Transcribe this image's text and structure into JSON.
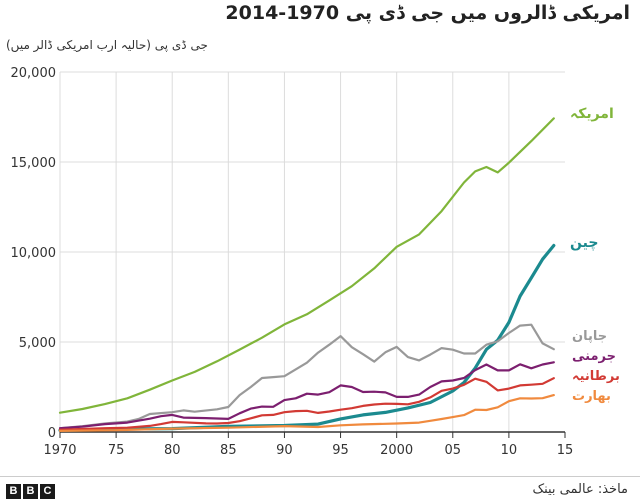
{
  "header": {
    "title": "امریکی ڈالروں میں جی ڈی پی 1970-2014",
    "subtitle": "جی ڈی پی (حالیہ ارب امریکی ڈالر میں)"
  },
  "footer": {
    "logo": [
      "B",
      "B",
      "C"
    ],
    "source": "ماخذ: عالمی بینک"
  },
  "chart_data": {
    "type": "line",
    "title": "امریکی ڈالروں میں جی ڈی پی 1970-2014",
    "ylabel": "جی ڈی پی (حالیہ ارب امریکی ڈالر میں)",
    "xlabel": "",
    "xlim": [
      1970,
      2015
    ],
    "ylim": [
      0,
      20000
    ],
    "x_ticks": [
      1970,
      1975,
      1980,
      1985,
      1990,
      1995,
      2000,
      2005,
      2010,
      2015
    ],
    "x_tick_labels": [
      "1970",
      "75",
      "80",
      "85",
      "90",
      "95",
      "2000",
      "05",
      "10",
      "15"
    ],
    "y_ticks": [
      0,
      5000,
      10000,
      15000,
      20000
    ],
    "y_tick_labels": [
      "0",
      "5,000",
      "10,000",
      "15,000",
      "20,000"
    ],
    "grid": true,
    "series": [
      {
        "name": "امریکہ",
        "color": "#80b53a",
        "width": 2.2,
        "points": [
          [
            1970,
            1070
          ],
          [
            1972,
            1280
          ],
          [
            1974,
            1550
          ],
          [
            1976,
            1870
          ],
          [
            1978,
            2350
          ],
          [
            1980,
            2860
          ],
          [
            1982,
            3340
          ],
          [
            1984,
            3930
          ],
          [
            1986,
            4580
          ],
          [
            1988,
            5240
          ],
          [
            1990,
            5980
          ],
          [
            1992,
            6540
          ],
          [
            1994,
            7310
          ],
          [
            1996,
            8100
          ],
          [
            1998,
            9090
          ],
          [
            2000,
            10290
          ],
          [
            2002,
            10980
          ],
          [
            2004,
            12270
          ],
          [
            2006,
            13860
          ],
          [
            2007,
            14480
          ],
          [
            2008,
            14720
          ],
          [
            2009,
            14420
          ],
          [
            2010,
            14960
          ],
          [
            2012,
            16160
          ],
          [
            2014,
            17420
          ]
        ]
      },
      {
        "name": "چین",
        "color": "#1b8a8f",
        "width": 3.2,
        "points": [
          [
            1970,
            90
          ],
          [
            1975,
            160
          ],
          [
            1980,
            190
          ],
          [
            1985,
            310
          ],
          [
            1990,
            360
          ],
          [
            1993,
            440
          ],
          [
            1995,
            730
          ],
          [
            1997,
            950
          ],
          [
            1999,
            1090
          ],
          [
            2001,
            1340
          ],
          [
            2003,
            1640
          ],
          [
            2005,
            2280
          ],
          [
            2006,
            2750
          ],
          [
            2007,
            3550
          ],
          [
            2008,
            4590
          ],
          [
            2009,
            5100
          ],
          [
            2010,
            6090
          ],
          [
            2011,
            7550
          ],
          [
            2012,
            8560
          ],
          [
            2013,
            9600
          ],
          [
            2014,
            10360
          ]
        ]
      },
      {
        "name": "جاپان",
        "color": "#999999",
        "width": 2.2,
        "points": [
          [
            1970,
            210
          ],
          [
            1972,
            320
          ],
          [
            1974,
            470
          ],
          [
            1976,
            580
          ],
          [
            1977,
            720
          ],
          [
            1978,
            1000
          ],
          [
            1980,
            1100
          ],
          [
            1981,
            1200
          ],
          [
            1982,
            1130
          ],
          [
            1984,
            1260
          ],
          [
            1985,
            1390
          ],
          [
            1986,
            2050
          ],
          [
            1987,
            2500
          ],
          [
            1988,
            3000
          ],
          [
            1989,
            3050
          ],
          [
            1990,
            3100
          ],
          [
            1992,
            3850
          ],
          [
            1993,
            4410
          ],
          [
            1994,
            4850
          ],
          [
            1995,
            5330
          ],
          [
            1996,
            4710
          ],
          [
            1997,
            4320
          ],
          [
            1998,
            3910
          ],
          [
            1999,
            4430
          ],
          [
            2000,
            4730
          ],
          [
            2001,
            4160
          ],
          [
            2002,
            3980
          ],
          [
            2003,
            4300
          ],
          [
            2004,
            4660
          ],
          [
            2005,
            4570
          ],
          [
            2006,
            4360
          ],
          [
            2007,
            4360
          ],
          [
            2008,
            4850
          ],
          [
            2009,
            5040
          ],
          [
            2010,
            5500
          ],
          [
            2011,
            5910
          ],
          [
            2012,
            5960
          ],
          [
            2013,
            4920
          ],
          [
            2014,
            4600
          ]
        ]
      },
      {
        "name": "جرمنی",
        "color": "#7c1f6f",
        "width": 2.2,
        "points": [
          [
            1970,
            210
          ],
          [
            1972,
            300
          ],
          [
            1974,
            440
          ],
          [
            1976,
            520
          ],
          [
            1978,
            740
          ],
          [
            1979,
            880
          ],
          [
            1980,
            950
          ],
          [
            1981,
            800
          ],
          [
            1983,
            770
          ],
          [
            1985,
            730
          ],
          [
            1986,
            1040
          ],
          [
            1987,
            1300
          ],
          [
            1988,
            1410
          ],
          [
            1989,
            1400
          ],
          [
            1990,
            1770
          ],
          [
            1991,
            1870
          ],
          [
            1992,
            2130
          ],
          [
            1993,
            2080
          ],
          [
            1994,
            2210
          ],
          [
            1995,
            2590
          ],
          [
            1996,
            2500
          ],
          [
            1997,
            2220
          ],
          [
            1998,
            2240
          ],
          [
            1999,
            2200
          ],
          [
            2000,
            1950
          ],
          [
            2001,
            1950
          ],
          [
            2002,
            2080
          ],
          [
            2003,
            2500
          ],
          [
            2004,
            2810
          ],
          [
            2005,
            2860
          ],
          [
            2006,
            3000
          ],
          [
            2007,
            3440
          ],
          [
            2008,
            3750
          ],
          [
            2009,
            3420
          ],
          [
            2010,
            3420
          ],
          [
            2011,
            3760
          ],
          [
            2012,
            3540
          ],
          [
            2013,
            3750
          ],
          [
            2014,
            3870
          ]
        ]
      },
      {
        "name": "برطانیہ",
        "color": "#d23a34",
        "width": 2.2,
        "points": [
          [
            1970,
            130
          ],
          [
            1974,
            210
          ],
          [
            1976,
            240
          ],
          [
            1978,
            340
          ],
          [
            1979,
            440
          ],
          [
            1980,
            560
          ],
          [
            1981,
            540
          ],
          [
            1983,
            480
          ],
          [
            1984,
            470
          ],
          [
            1985,
            500
          ],
          [
            1986,
            600
          ],
          [
            1987,
            760
          ],
          [
            1988,
            930
          ],
          [
            1989,
            950
          ],
          [
            1990,
            1100
          ],
          [
            1991,
            1160
          ],
          [
            1992,
            1180
          ],
          [
            1993,
            1060
          ],
          [
            1994,
            1140
          ],
          [
            1995,
            1240
          ],
          [
            1996,
            1320
          ],
          [
            1997,
            1450
          ],
          [
            1998,
            1530
          ],
          [
            1999,
            1570
          ],
          [
            2000,
            1560
          ],
          [
            2001,
            1540
          ],
          [
            2002,
            1680
          ],
          [
            2003,
            1920
          ],
          [
            2004,
            2290
          ],
          [
            2005,
            2410
          ],
          [
            2006,
            2620
          ],
          [
            2007,
            2960
          ],
          [
            2008,
            2790
          ],
          [
            2009,
            2310
          ],
          [
            2010,
            2410
          ],
          [
            2011,
            2590
          ],
          [
            2012,
            2630
          ],
          [
            2013,
            2680
          ],
          [
            2014,
            2990
          ]
        ]
      },
      {
        "name": "بھارت",
        "color": "#f08a3e",
        "width": 2.2,
        "points": [
          [
            1970,
            60
          ],
          [
            1975,
            100
          ],
          [
            1980,
            190
          ],
          [
            1985,
            240
          ],
          [
            1990,
            330
          ],
          [
            1993,
            280
          ],
          [
            1995,
            370
          ],
          [
            1997,
            420
          ],
          [
            2000,
            470
          ],
          [
            2002,
            520
          ],
          [
            2003,
            620
          ],
          [
            2004,
            720
          ],
          [
            2005,
            830
          ],
          [
            2006,
            940
          ],
          [
            2007,
            1240
          ],
          [
            2008,
            1220
          ],
          [
            2009,
            1370
          ],
          [
            2010,
            1710
          ],
          [
            2011,
            1870
          ],
          [
            2012,
            1860
          ],
          [
            2013,
            1880
          ],
          [
            2014,
            2050
          ]
        ]
      }
    ]
  }
}
